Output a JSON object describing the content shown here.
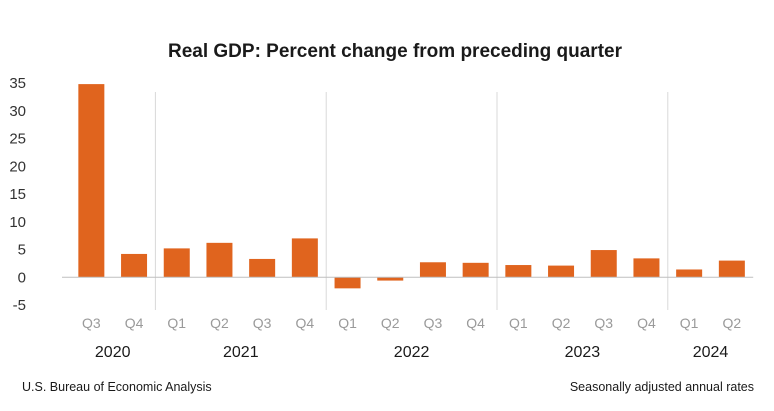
{
  "chart_data": {
    "type": "bar",
    "title": "Real GDP: Percent change from preceding quarter",
    "categories": [
      "Q3",
      "Q4",
      "Q1",
      "Q2",
      "Q3",
      "Q4",
      "Q1",
      "Q2",
      "Q3",
      "Q4",
      "Q1",
      "Q2",
      "Q3",
      "Q4",
      "Q1",
      "Q2"
    ],
    "years": [
      {
        "label": "2020",
        "start": 0,
        "end": 1
      },
      {
        "label": "2021",
        "start": 2,
        "end": 5
      },
      {
        "label": "2022",
        "start": 6,
        "end": 9
      },
      {
        "label": "2023",
        "start": 10,
        "end": 13
      },
      {
        "label": "2024",
        "start": 14,
        "end": 15
      }
    ],
    "values": [
      34.8,
      4.2,
      5.2,
      6.2,
      3.3,
      7.0,
      -2.0,
      -0.6,
      2.7,
      2.6,
      2.2,
      2.1,
      4.9,
      3.4,
      1.4,
      3.0
    ],
    "ylim": [
      -5,
      35
    ],
    "yticks": [
      "35",
      "30",
      "25",
      "20",
      "15",
      "10",
      "5",
      "0",
      "-5"
    ],
    "ytick_values": [
      35,
      30,
      25,
      20,
      15,
      10,
      5,
      0,
      -5
    ],
    "bar_color": "#e0641e",
    "xlabel": "",
    "ylabel": ""
  },
  "footer": {
    "source": "U.S. Bureau of Economic Analysis",
    "note": "Seasonally adjusted annual rates"
  }
}
